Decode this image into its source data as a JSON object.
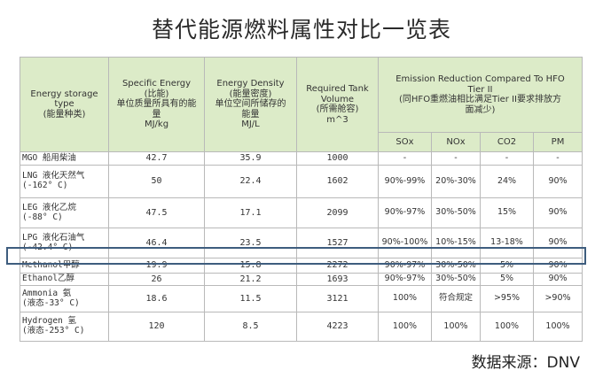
{
  "title": "替代能源燃料属性对比一览表",
  "headers": {
    "energy_type": [
      "Energy storage",
      "type",
      "(能量种类)"
    ],
    "specific_energy": [
      "Specific Energy",
      "(比能)",
      "单位质量所具有的能",
      "量",
      "MJ/kg"
    ],
    "energy_density": [
      "Energy Density",
      "(能量密度)",
      "单位空间所储存的",
      "能量",
      "MJ/L"
    ],
    "tank_volume": [
      "Required Tank",
      "Volume",
      "(所需舱容)",
      "m^3"
    ],
    "emission": [
      "Emission Reduction Compared To HFO",
      "Tier II",
      "(同HFO重燃油相比满足Tier II要求排放方",
      "面减少)"
    ],
    "sox": "SOx",
    "nox": "NOx",
    "co2": "CO2",
    "pm": "PM"
  },
  "rows": [
    {
      "name": [
        "MGO 船用柴油"
      ],
      "specific_energy": "42.7",
      "energy_density": "35.9",
      "tank_volume": "1000",
      "sox": "-",
      "nox": "-",
      "co2": "-",
      "pm": "-"
    },
    {
      "name": [
        "LNG 液化天然气",
        "(-162° C)"
      ],
      "specific_energy": "50",
      "energy_density": "22.4",
      "tank_volume": "1602",
      "sox": "90%-99%",
      "nox": "20%-30%",
      "co2": "24%",
      "pm": "90%"
    },
    {
      "name": [
        "LEG 液化乙烷",
        "(-88° C)"
      ],
      "specific_energy": "47.5",
      "energy_density": "17.1",
      "tank_volume": "2099",
      "sox": "90%-97%",
      "nox": "30%-50%",
      "co2": "15%",
      "pm": "90%"
    },
    {
      "name": [
        "LPG 液化石油气",
        "(-42.4° C)"
      ],
      "specific_energy": "46.4",
      "energy_density": "23.5",
      "tank_volume": "1527",
      "sox": "90%-100%",
      "nox": "10%-15%",
      "co2": "13-18%",
      "pm": "90%"
    },
    {
      "name": [
        "Methanol甲醇"
      ],
      "specific_energy": "19.9",
      "energy_density": "15.8",
      "tank_volume": "2272",
      "sox": "90%-97%",
      "nox": "30%-50%",
      "co2": "5%",
      "pm": "90%"
    },
    {
      "name": [
        "Ethanol乙醇"
      ],
      "specific_energy": "26",
      "energy_density": "21.2",
      "tank_volume": "1693",
      "sox": "90%-97%",
      "nox": "30%-50%",
      "co2": "5%",
      "pm": "90%"
    },
    {
      "name": [
        "Ammonia 氨",
        "(液态-33° C)"
      ],
      "specific_energy": "18.6",
      "energy_density": "11.5",
      "tank_volume": "3121",
      "sox": "100%",
      "nox": "符合规定",
      "co2": ">95%",
      "pm": ">90%"
    },
    {
      "name": [
        "Hydrogen 氢",
        "(液态-253° C)"
      ],
      "specific_energy": "120",
      "energy_density": "8.5",
      "tank_volume": "4223",
      "sox": "100%",
      "nox": "100%",
      "co2": "100%",
      "pm": "100%"
    }
  ],
  "source": "数据来源：DNV"
}
